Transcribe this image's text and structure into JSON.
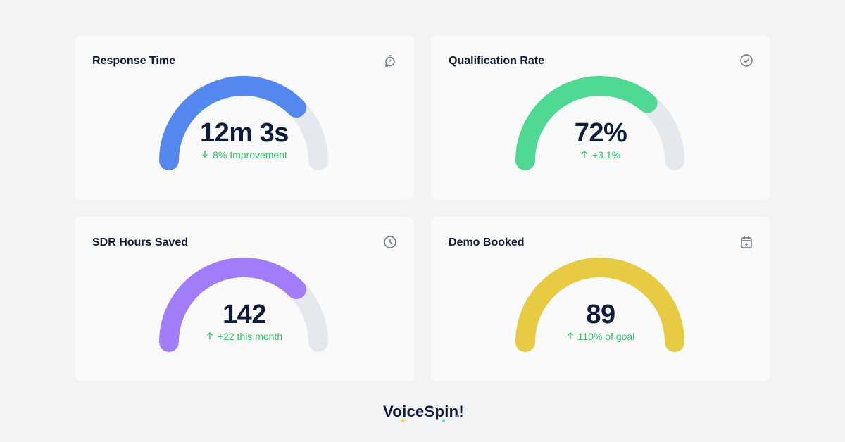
{
  "cards": [
    {
      "title": "Response Time",
      "icon": "timer-icon",
      "value": "12m 3s",
      "change": "8% Improvement",
      "direction": "down",
      "percent": 75,
      "color": "#5588ee"
    },
    {
      "title": "Qualification Rate",
      "icon": "check-circle-icon",
      "value": "72%",
      "change": "+3.1%",
      "direction": "up",
      "percent": 72,
      "color": "#4fd893"
    },
    {
      "title": "SDR Hours Saved",
      "icon": "clock-icon",
      "value": "142",
      "change": "+22 this month",
      "direction": "up",
      "percent": 75,
      "color": "#a07cf8"
    },
    {
      "title": "Demo Booked",
      "icon": "calendar-plus-icon",
      "value": "89",
      "change": "110% of goal",
      "direction": "up",
      "percent": 100,
      "color": "#e6cb43"
    }
  ],
  "track_color": "#e5e9ee",
  "positive_color": "#2ec26a",
  "brand": {
    "name": "VoiceSpin!"
  }
}
